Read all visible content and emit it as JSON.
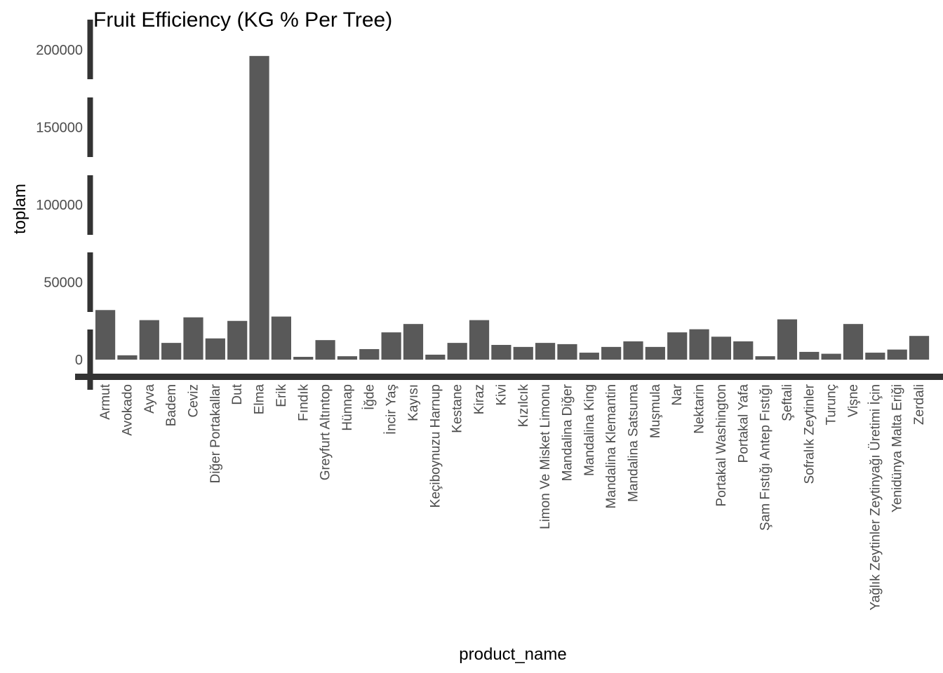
{
  "colors": {
    "bar": "#595959",
    "axis": "#333333",
    "tick_text": "#4d4d4d"
  },
  "chart_data": {
    "type": "bar",
    "title": "Fruit Efficiency (KG % Per Tree)",
    "xlabel": "product_name",
    "ylabel": "toplam",
    "ylim": [
      -4000,
      220000
    ],
    "yticks": [
      0,
      50000,
      100000,
      150000,
      200000
    ],
    "grid": false,
    "categories": [
      "Armut",
      "Avokado",
      "Ayva",
      "Badem",
      "Ceviz",
      "Diğer Portakallar",
      "Dut",
      "Elma",
      "Erik",
      "Fındık",
      "Greyfurt Altıntop",
      "Hünnap",
      "İğde",
      "İncir Yaş",
      "Kayısı",
      "Keçiboynuzu Harnup",
      "Kestane",
      "Kiraz",
      "Kivi",
      "Kızılcık",
      "Limon Ve Misket Limonu",
      "Mandalina Diğer",
      "Mandalina King",
      "Mandalina Klemantin",
      "Mandalina Satsuma",
      "Muşmula",
      "Nar",
      "Nektarin",
      "Portakal Washington",
      "Portakal Yafa",
      "Şam Fıstığı Antep Fıstığı",
      "Şeftali",
      "Sofralık Zeytinler",
      "Turunç",
      "Vişne",
      "Yağlık Zeytinler Zeytinyağı Üretimi İçin",
      "Yenidünya Malta Eriği",
      "Zerdali"
    ],
    "values": [
      32000,
      2800,
      25500,
      10800,
      27300,
      13700,
      25000,
      196000,
      27800,
      1800,
      12600,
      2200,
      6800,
      17600,
      23000,
      3200,
      10800,
      25500,
      9500,
      8200,
      10800,
      10000,
      4500,
      8200,
      11800,
      8200,
      17600,
      19600,
      14800,
      11800,
      2200,
      26000,
      5000,
      3800,
      23000,
      4500,
      6500,
      15300
    ]
  }
}
